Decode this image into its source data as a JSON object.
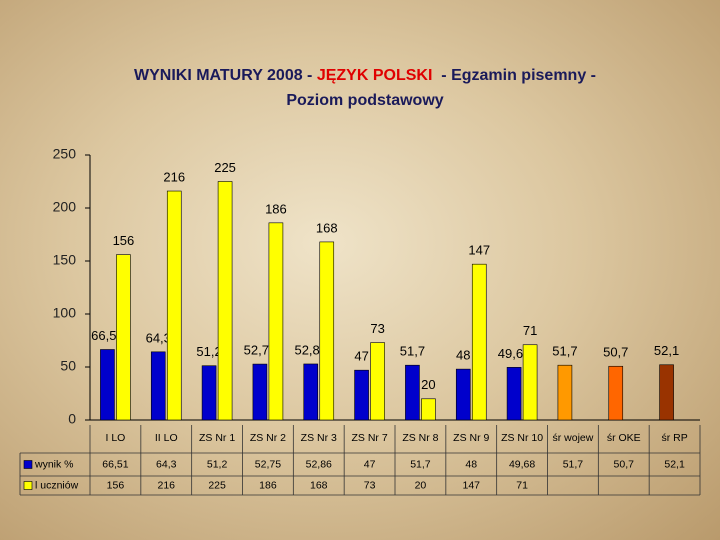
{
  "chart_data": {
    "type": "bar",
    "title": [
      "WYNIKI MATURY 2008 - ",
      "JĘZYK POLSKI",
      "  - Egzamin pisemny -",
      "Poziom podstawowy"
    ],
    "title_colors": [
      "#1a1a5a",
      "#e00000",
      "#1a1a5a",
      "#1a1a5a"
    ],
    "categories": [
      "I LO",
      "II LO",
      "ZS Nr 1",
      "ZS Nr 2",
      "ZS Nr 3",
      "ZS Nr 7",
      "ZS Nr 8",
      "ZS Nr 9",
      "ZS Nr 10",
      "śr wojew",
      "śr OKE",
      "śr RP"
    ],
    "series": [
      {
        "name": "wynik %",
        "color": "#0000cc",
        "colors": [
          "#0000cc",
          "#0000cc",
          "#0000cc",
          "#0000cc",
          "#0000cc",
          "#0000cc",
          "#0000cc",
          "#0000cc",
          "#0000cc",
          "#ff9900",
          "#ff6600",
          "#993300"
        ],
        "values": [
          66.51,
          64.3,
          51.2,
          52.75,
          52.86,
          47,
          51.7,
          48,
          49.68,
          51.7,
          50.7,
          52.1
        ],
        "value_labels": [
          "66,51",
          "64,3",
          "51,2",
          "52,75",
          "52,86",
          "47",
          "51,7",
          "48",
          "49,68",
          "51,7",
          "50,7",
          "52,1"
        ]
      },
      {
        "name": "l uczniów",
        "color": "#ffff00",
        "values": [
          156,
          216,
          225,
          186,
          168,
          73,
          20,
          147,
          71,
          null,
          null,
          null
        ]
      }
    ],
    "ylim": [
      0,
      250
    ],
    "yticks": [
      0,
      50,
      100,
      150,
      200,
      250
    ],
    "grid": false
  }
}
